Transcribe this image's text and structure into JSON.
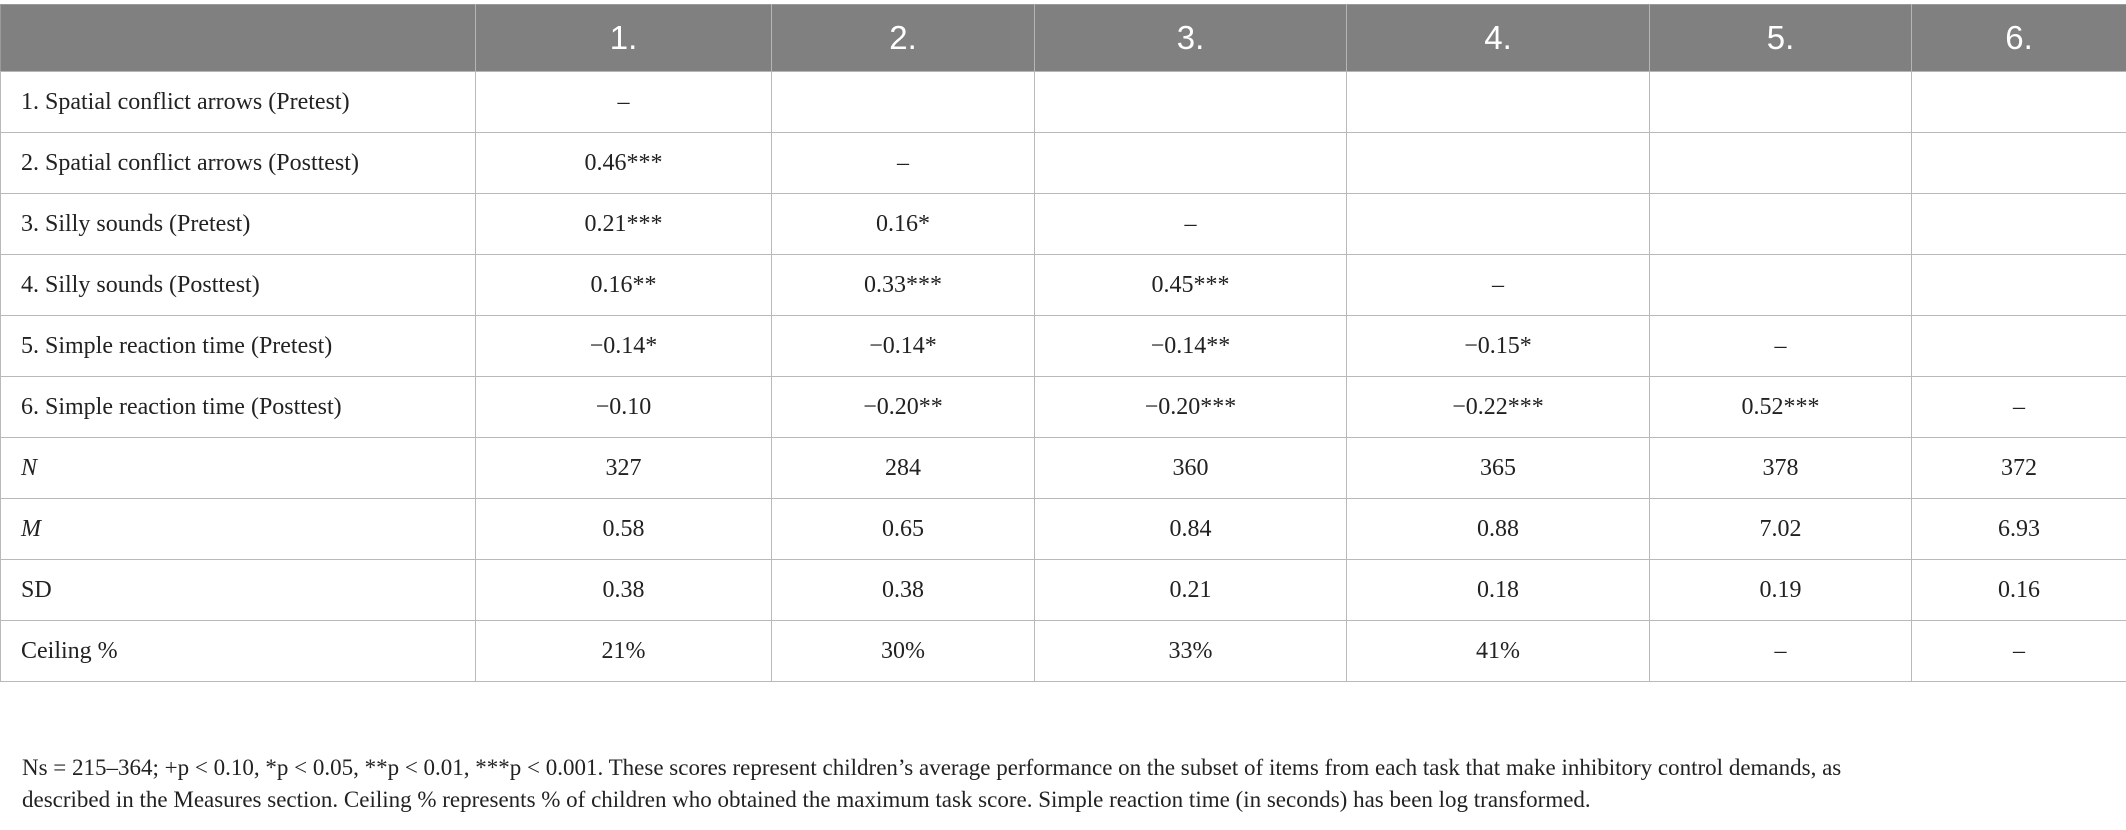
{
  "table": {
    "columns": [
      "",
      "1.",
      "2.",
      "3.",
      "4.",
      "5.",
      "6."
    ],
    "rows": [
      {
        "label": "1. Spatial conflict arrows (Pretest)",
        "cells": [
          "–",
          "",
          "",
          "",
          "",
          ""
        ]
      },
      {
        "label": "2. Spatial conflict arrows (Posttest)",
        "cells": [
          "0.46***",
          "–",
          "",
          "",
          "",
          ""
        ]
      },
      {
        "label": "3. Silly sounds (Pretest)",
        "cells": [
          "0.21***",
          "0.16*",
          "–",
          "",
          "",
          ""
        ]
      },
      {
        "label": "4. Silly sounds (Posttest)",
        "cells": [
          "0.16**",
          "0.33***",
          "0.45***",
          "–",
          "",
          ""
        ]
      },
      {
        "label": "5. Simple reaction time (Pretest)",
        "cells": [
          "−0.14*",
          "−0.14*",
          "−0.14**",
          "−0.15*",
          "–",
          ""
        ]
      },
      {
        "label": "6. Simple reaction time (Posttest)",
        "cells": [
          "−0.10",
          "−0.20**",
          "−0.20***",
          "−0.22***",
          "0.52***",
          "–"
        ]
      },
      {
        "label": "N",
        "cells": [
          "327",
          "284",
          "360",
          "365",
          "378",
          "372"
        ]
      },
      {
        "label": "M",
        "cells": [
          "0.58",
          "0.65",
          "0.84",
          "0.88",
          "7.02",
          "6.93"
        ]
      },
      {
        "label": "SD",
        "cells": [
          "0.38",
          "0.38",
          "0.21",
          "0.18",
          "0.19",
          "0.16"
        ]
      },
      {
        "label": "Ceiling %",
        "cells": [
          "21%",
          "30%",
          "33%",
          "41%",
          "–",
          "–"
        ]
      }
    ]
  },
  "footnote": {
    "line1": "Ns = 215–364; +p < 0.10, *p < 0.05, **p < 0.01, ***p < 0.001. These scores represent children’s average performance on the subset of items from each task that make inhibitory control demands, as",
    "line2": "described in the Measures section. Ceiling % represents % of children who obtained the maximum task score. Simple reaction time (in seconds) has been log transformed."
  },
  "colors": {
    "header_bg": "#808080",
    "header_text": "#ffffff",
    "border": "#b9b9b9",
    "text": "#222222"
  }
}
